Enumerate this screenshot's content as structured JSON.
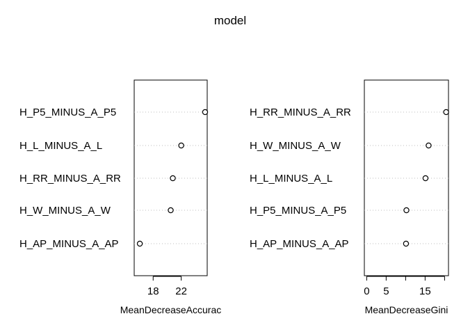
{
  "title": "model",
  "chart_data": [
    {
      "type": "scatter",
      "title": "model",
      "xlabel": "MeanDecreaseAccurac",
      "ylabel": "",
      "xlim": [
        15.3,
        25.7
      ],
      "xticks": [
        18,
        22
      ],
      "xtick_labels": [
        "18",
        "22"
      ],
      "grid": false,
      "categories": [
        "H_P5_MINUS_A_P5",
        "H_L_MINUS_A_L",
        "H_RR_MINUS_A_RR",
        "H_W_MINUS_A_W",
        "H_AP_MINUS_A_AP"
      ],
      "values": [
        25.4,
        22.0,
        20.8,
        20.5,
        16.1
      ]
    },
    {
      "type": "scatter",
      "title": "model",
      "xlabel": "MeanDecreaseGini",
      "ylabel": "",
      "xlim": [
        -0.6,
        21.0
      ],
      "xticks": [
        0,
        5,
        10,
        15,
        20
      ],
      "xtick_labels": [
        "0",
        "5",
        "",
        "15",
        ""
      ],
      "grid": false,
      "categories": [
        "H_RR_MINUS_A_RR",
        "H_W_MINUS_A_W",
        "H_L_MINUS_A_L",
        "H_P5_MINUS_A_P5",
        "H_AP_MINUS_A_AP"
      ],
      "values": [
        20.4,
        15.9,
        15.1,
        10.2,
        10.1
      ]
    }
  ]
}
